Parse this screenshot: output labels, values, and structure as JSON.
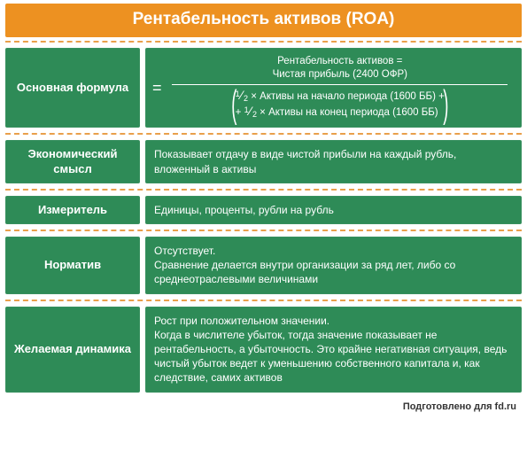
{
  "colors": {
    "header_bg": "#ed9121",
    "cell_bg": "#2e8b57",
    "text_on_color": "#ffffff",
    "dash_border": "#e9a04b",
    "footer_text": "#333333",
    "page_bg": "#ffffff"
  },
  "title": "Рентабельность активов (ROA)",
  "rows": [
    {
      "label": "Основная формула",
      "kind": "formula",
      "formula": {
        "numerator_line1": "Рентабельность активов =",
        "numerator_line2": "Чистая прибыль (2400 ОФР)",
        "denom_line1": "× Активы на начало периода (1600 ББ) +",
        "denom_line2": "× Активы на конец периода (1600 ББ)",
        "half_label_top": "1",
        "half_label_bot": "2",
        "plus_prefix": "+ ",
        "equals": "="
      }
    },
    {
      "label": "Экономический смысл",
      "kind": "text",
      "text": "Показывает отдачу в виде чистой прибыли на каждый рубль, вложенный в активы"
    },
    {
      "label": "Измеритель",
      "kind": "text",
      "text": "Единицы, проценты, рубли на рубль"
    },
    {
      "label": "Норматив",
      "kind": "text",
      "text": "Отсутствует.\nСравнение делается внутри организации за ряд лет, либо со среднеотраслевыми величинами"
    },
    {
      "label": "Желаемая динамика",
      "kind": "text",
      "text": "Рост при положительном значении.\nКогда в числителе убыток, тогда значение показывает не рентабельность, а убыточность. Это крайне негативная ситуация, ведь чистый убыток ведет к уменьшению собственного капитала и, как следствие, самих активов"
    }
  ],
  "footer": "Подготовлено для fd.ru"
}
